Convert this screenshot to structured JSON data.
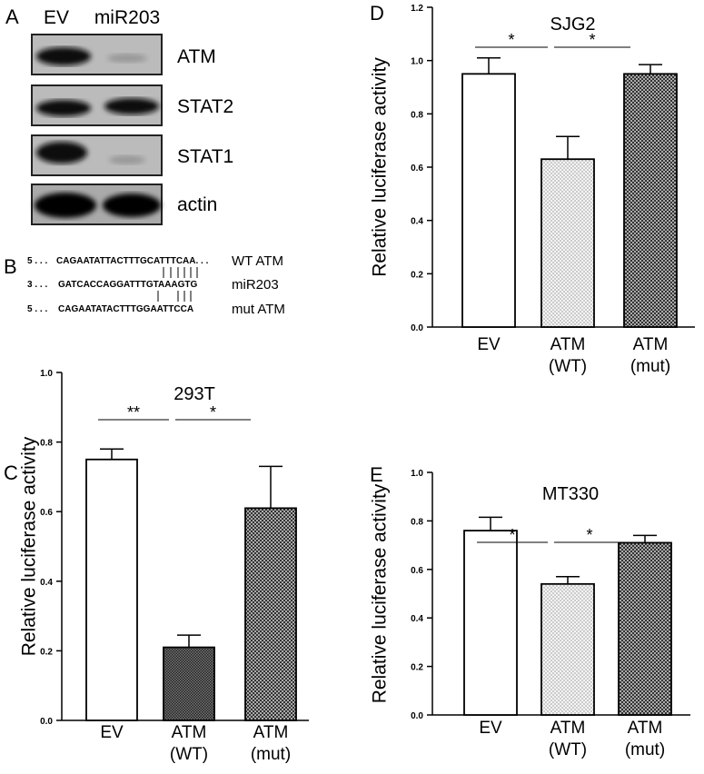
{
  "panel_a": {
    "label": "A",
    "lanes": [
      "EV",
      "miR203"
    ],
    "proteins": [
      "ATM",
      "STAT2",
      "STAT1",
      "actin"
    ]
  },
  "panel_b": {
    "label": "B",
    "rows": [
      {
        "prefix": "5 . . .",
        "sequence": "CAGAATATTACTTTGCATTTCAA. . .",
        "name": "WT ATM"
      },
      {
        "prefix": "3 . . .",
        "sequence": "GATCACCAGGATTTGTAAAGTG",
        "name": "miR203"
      },
      {
        "prefix": "5 . . .",
        "sequence": "CAGAATATACTTTGGAATTCCA",
        "name": "mut ATM"
      }
    ]
  },
  "chart_data": [
    {
      "type": "bar",
      "panel": "C",
      "title": "293T",
      "y_label": "Relative luciferase activity",
      "categories": [
        "EV",
        "ATM\n(WT)",
        "ATM\n(mut)"
      ],
      "values": [
        0.75,
        0.21,
        0.61
      ],
      "errors": [
        0.03,
        0.035,
        0.12
      ],
      "fills": [
        "white",
        "dense",
        "checker"
      ],
      "significance": [
        "**",
        "*"
      ],
      "ylim": [
        0,
        1.0
      ],
      "yticks": [
        {
          "value": 0,
          "label": "0.0"
        },
        0.2,
        0.4,
        0.6,
        0.8,
        {
          "value": 1.0,
          "label": "1.0"
        }
      ]
    },
    {
      "type": "bar",
      "panel": "D",
      "title": "SJG2",
      "y_label": "Relative luciferase activity",
      "categories": [
        "EV",
        "ATM\n(WT)",
        "ATM\n(mut)"
      ],
      "values": [
        0.95,
        0.63,
        0.95
      ],
      "errors": [
        0.06,
        0.085,
        0.035
      ],
      "fills": [
        "white",
        "dots",
        "checker"
      ],
      "significance": [
        "*",
        "*"
      ],
      "ylim": [
        0,
        1.2
      ],
      "yticks": [
        {
          "value": 0,
          "label": "0.0"
        },
        0.2,
        0.4,
        0.6,
        0.8,
        {
          "value": 1.0,
          "label": "1.0"
        },
        1.2
      ]
    },
    {
      "type": "bar",
      "panel": "E",
      "title": "MT330",
      "y_label": "Relative luciferase activity",
      "categories": [
        "EV",
        "ATM\n(WT)",
        "ATM\n(mut)"
      ],
      "values": [
        0.76,
        0.54,
        0.71
      ],
      "errors": [
        0.055,
        0.03,
        0.03
      ],
      "fills": [
        "white",
        "dots",
        "checker"
      ],
      "significance": [
        "*",
        "*"
      ],
      "ylim": [
        0,
        1.0
      ],
      "yticks": [
        {
          "value": 0,
          "label": "0.0"
        },
        0.2,
        0.4,
        0.6,
        0.8,
        {
          "value": 1.0,
          "label": "1.0"
        }
      ]
    }
  ]
}
